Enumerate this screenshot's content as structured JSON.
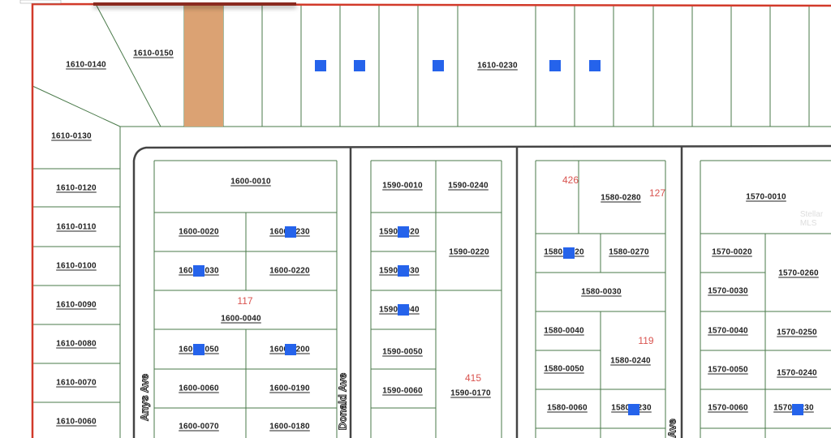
{
  "map": {
    "highlight_color": "#dba273",
    "marker_color": "#2563eb",
    "boundary_color": "#d23a2a",
    "parcel_line_color": "#4a7a4a",
    "street_color": "#444444",
    "parcels": [
      "1610-0140",
      "1610-0150",
      "1610-0230",
      "1610-0130",
      "1610-0120",
      "1610-0110",
      "1610-0100",
      "1610-0090",
      "1610-0080",
      "1610-0070",
      "1610-0060",
      "1600-0010",
      "1600-0020",
      "1600-0230",
      "1600-0030",
      "1600-0220",
      "1600-0040",
      "1600-0050",
      "1600-0200",
      "1600-0060",
      "1600-0190",
      "1600-0070",
      "1600-0180",
      "1590-0010",
      "1590-0240",
      "1590-0020",
      "1590-0220",
      "1590-0030",
      "1590-0040",
      "1590-0050",
      "1590-0060",
      "1590-0170",
      "1580-0280",
      "1580-0020",
      "1580-0270",
      "1580-0030",
      "1580-0040",
      "1580-0240",
      "1580-0050",
      "1580-0060",
      "1580-0230",
      "1570-0010",
      "1570-0020",
      "1570-0260",
      "1570-0030",
      "1570-0040",
      "1570-0250",
      "1570-0050",
      "1570-0240",
      "1570-0060",
      "1570-0230"
    ],
    "lot_numbers": [
      "117",
      "415",
      "426",
      "127",
      "119"
    ],
    "streets": [
      "Anys Ave",
      "Donald Ave",
      "Ave"
    ],
    "watermark": "Stellar MLS"
  }
}
